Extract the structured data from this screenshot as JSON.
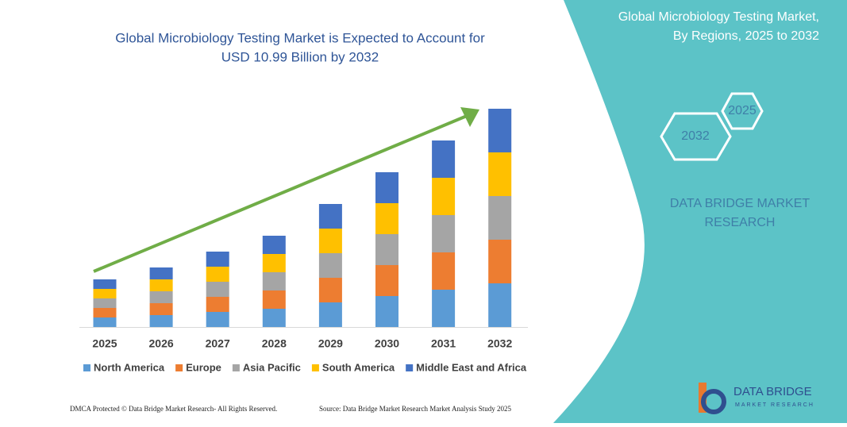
{
  "chart_data": {
    "type": "stacked-bar",
    "title": [
      "Global Microbiology Testing Market is Expected to Account for",
      "USD 10.99 Billion by 2032"
    ],
    "categories": [
      "2025",
      "2026",
      "2027",
      "2028",
      "2029",
      "2030",
      "2031",
      "2032"
    ],
    "series": [
      {
        "name": "North America",
        "color": "#5b9bd5",
        "values": [
          12,
          15,
          19,
          23,
          31,
          39,
          47,
          55
        ]
      },
      {
        "name": "Europe",
        "color": "#ed7d31",
        "values": [
          12,
          15,
          19,
          23,
          31,
          39,
          47,
          55
        ]
      },
      {
        "name": "Asia Pacific",
        "color": "#a5a5a5",
        "values": [
          12,
          15,
          19,
          23,
          31,
          39,
          47,
          55
        ]
      },
      {
        "name": "South America",
        "color": "#ffc000",
        "values": [
          12,
          15,
          19,
          23,
          31,
          39,
          47,
          55
        ]
      },
      {
        "name": "Middle East and Africa",
        "color": "#4472c4",
        "values": [
          12,
          15,
          19,
          23,
          31,
          39,
          47,
          55
        ]
      }
    ]
  },
  "panel": {
    "title": [
      "Global Microbiology Testing Market,",
      "By Regions, 2025 to 2032"
    ],
    "hex_start": "2025",
    "hex_end": "2032",
    "brand": [
      "DATA BRIDGE MARKET",
      "RESEARCH"
    ]
  },
  "footer": {
    "dmca": "DMCA Protected © Data Bridge Market Research- All Rights Reserved.",
    "source": "Source: Data Bridge Market Research  Market Analysis Study 2025"
  },
  "logo": {
    "name": "DATA BRIDGE",
    "tagline": "MARKET RESEARCH"
  }
}
